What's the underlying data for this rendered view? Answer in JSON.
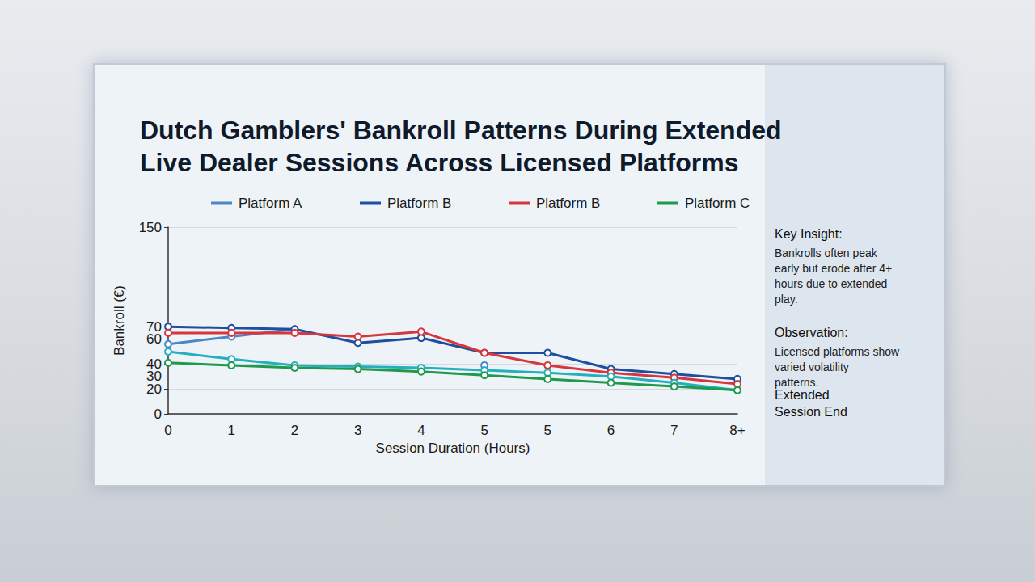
{
  "chart_data": {
    "type": "line",
    "title": "Dutch Gamblers' Bankroll Patterns During Extended Live Dealer Sessions Across Licensed Platforms",
    "x_label": "Session Duration (Hours)",
    "y_label": "Bankroll (€)",
    "categories": [
      "0",
      "1",
      "2",
      "3",
      "4",
      "5",
      "5",
      "6",
      "7",
      "8+"
    ],
    "series": [
      {
        "name": "Platform A",
        "color": "#4a86c8",
        "values": [
          56,
          62,
          68,
          null,
          null,
          39,
          null,
          null,
          null,
          null
        ]
      },
      {
        "name": "Platform B",
        "color": "#1d4f9e",
        "values": [
          70,
          69,
          68,
          57,
          61,
          49,
          49,
          36,
          32,
          28
        ]
      },
      {
        "name": "Platform B",
        "color": "#d8363d",
        "values": [
          65,
          65,
          65,
          62,
          66,
          49,
          39,
          33,
          29,
          24
        ]
      },
      {
        "color": "#23b0bd",
        "values": [
          50,
          44,
          39,
          38,
          37,
          35,
          33,
          30,
          25,
          19
        ]
      },
      {
        "name": "Platform C",
        "color": "#1f9a4c",
        "values": [
          41,
          39,
          37,
          36,
          34,
          31,
          28,
          25,
          22,
          19
        ]
      }
    ],
    "ylim": [
      0,
      150
    ],
    "yticks": [
      0,
      20,
      30,
      40,
      60,
      70,
      150
    ],
    "grid": true,
    "legend": "top",
    "marker": "circle",
    "annotations": [
      {
        "title": "Key Insight:",
        "text": "Bankrolls often peak early but erode after 4+ hours due to extended play."
      },
      {
        "title": "Observation:",
        "text": "Licensed platforms show varied volatility patterns."
      }
    ],
    "end_label": "Extended Session End"
  }
}
